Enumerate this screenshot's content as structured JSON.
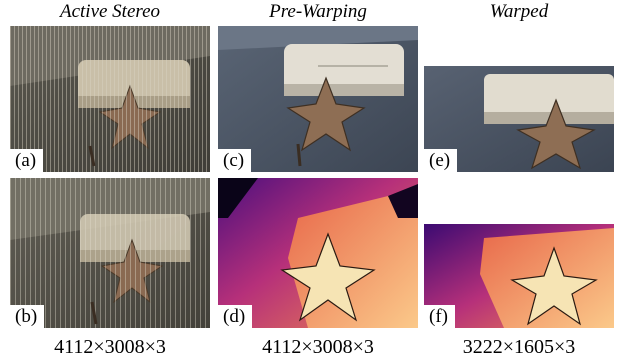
{
  "columns": {
    "active": {
      "title": "Active Stereo",
      "dims": "4112×3008×3"
    },
    "prewarp": {
      "title": "Pre-Warping",
      "dims": "4112×3008×3"
    },
    "warped": {
      "title": "Warped",
      "dims": "3222×1605×3"
    }
  },
  "panels": {
    "a": {
      "label": "(a)"
    },
    "b": {
      "label": "(b)"
    },
    "c": {
      "label": "(c)"
    },
    "d": {
      "label": "(d)"
    },
    "e": {
      "label": "(e)"
    },
    "f": {
      "label": "(f)"
    }
  },
  "colors": {
    "photo_wall_active": "#5c5a52",
    "photo_wall_clean": "#4f5a68",
    "ac_unit": "#dcd8cf",
    "star": "#8a6a52",
    "depth_near": "#fde6a8",
    "depth_mid": "#e8684a",
    "depth_far": "#4b0f7e"
  }
}
